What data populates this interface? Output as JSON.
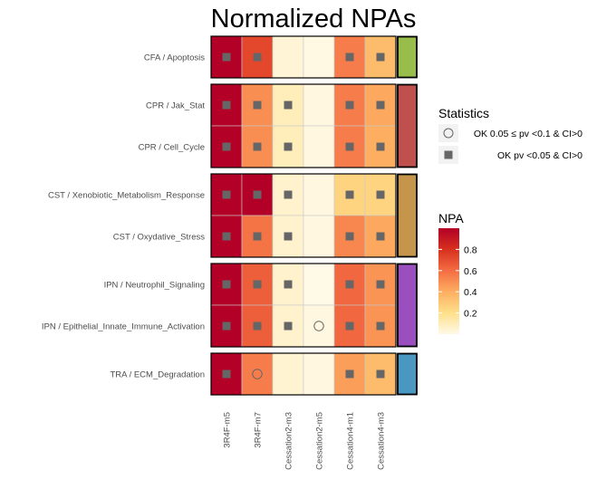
{
  "chart_data": {
    "type": "heatmap",
    "title": "Normalized NPAs",
    "columns": [
      "3R4F-m5",
      "3R4F-m7",
      "Cessation2-m3",
      "Cessation2-m5",
      "Cessation4-m1",
      "Cessation4-m3"
    ],
    "groups": [
      {
        "code": "CFA",
        "color": "#98bd4a",
        "rows": [
          "CFA / Apoptosis"
        ]
      },
      {
        "code": "CPR",
        "color": "#c0504d",
        "rows": [
          "CPR / Jak_Stat",
          "CPR / Cell_Cycle"
        ]
      },
      {
        "code": "CST",
        "color": "#c4954a",
        "rows": [
          "CST / Xenobiotic_Metabolism_Response",
          "CST / Oxydative_Stress"
        ]
      },
      {
        "code": "IPN",
        "color": "#9a4fbf",
        "rows": [
          "IPN / Neutrophil_Signaling",
          "IPN / Epithelial_Innate_Immune_Activation"
        ]
      },
      {
        "code": "TRA",
        "color": "#4a97c2",
        "rows": [
          "TRA / ECM_Degradation"
        ]
      }
    ],
    "rows": [
      "CFA / Apoptosis",
      "CPR / Jak_Stat",
      "CPR / Cell_Cycle",
      "CST / Xenobiotic_Metabolism_Response",
      "CST / Oxydative_Stress",
      "IPN / Neutrophil_Signaling",
      "IPN / Epithelial_Innate_Immune_Activation",
      "TRA / ECM_Degradation"
    ],
    "values": [
      [
        1.0,
        0.72,
        0.04,
        0.01,
        0.55,
        0.35
      ],
      [
        1.0,
        0.5,
        0.1,
        0.02,
        0.55,
        0.42
      ],
      [
        1.0,
        0.5,
        0.1,
        0.02,
        0.55,
        0.4
      ],
      [
        1.0,
        1.0,
        0.06,
        0.02,
        0.25,
        0.25
      ],
      [
        1.0,
        0.58,
        0.06,
        0.02,
        0.52,
        0.42
      ],
      [
        1.0,
        0.65,
        0.06,
        0.0,
        0.62,
        0.48
      ],
      [
        1.0,
        0.65,
        0.06,
        0.02,
        0.62,
        0.48
      ],
      [
        1.0,
        0.55,
        0.05,
        0.02,
        0.45,
        0.35
      ]
    ],
    "statistics": [
      [
        "ok",
        "ok",
        "none",
        "none",
        "ok",
        "ok"
      ],
      [
        "ok",
        "ok",
        "ok",
        "none",
        "ok",
        "ok"
      ],
      [
        "ok",
        "ok",
        "ok",
        "none",
        "ok",
        "ok"
      ],
      [
        "ok",
        "ok",
        "ok",
        "none",
        "ok",
        "ok"
      ],
      [
        "ok",
        "ok",
        "ok",
        "none",
        "ok",
        "ok"
      ],
      [
        "ok",
        "ok",
        "ok",
        "none",
        "ok",
        "ok"
      ],
      [
        "ok",
        "ok",
        "ok",
        "weak",
        "ok",
        "ok"
      ],
      [
        "ok",
        "weak",
        "none",
        "none",
        "ok",
        "ok"
      ]
    ],
    "legend_statistics": {
      "title": "Statistics",
      "items": [
        {
          "symbol": "circle",
          "label": "OK 0.05 ≤ pv <0.1 & CI>0"
        },
        {
          "symbol": "square",
          "label": "OK pv <0.05 & CI>0"
        }
      ]
    },
    "legend_npa": {
      "title": "NPA",
      "range": [
        0,
        1
      ],
      "ticks": [
        0.8,
        0.6,
        0.4,
        0.2
      ],
      "colors": [
        "#fff9e8",
        "#fee08b",
        "#fdae61",
        "#f46d43",
        "#d7301f",
        "#b30026"
      ]
    },
    "legend_placement": "right"
  }
}
